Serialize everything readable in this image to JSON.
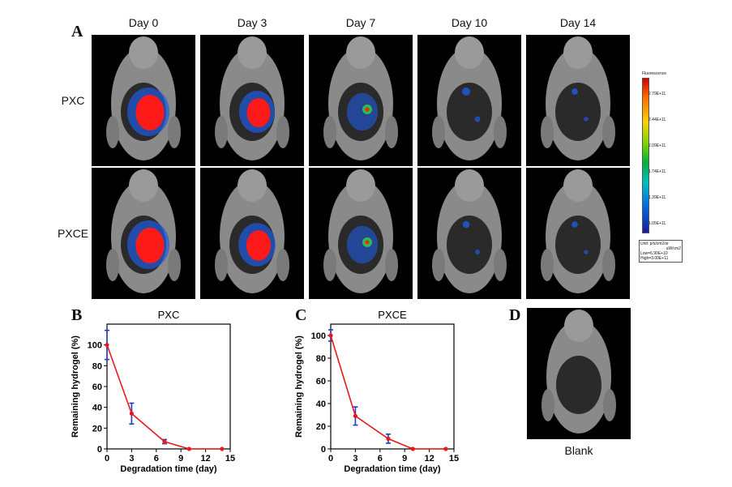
{
  "panel_a": {
    "letter": "A",
    "days": [
      "Day 0",
      "Day 3",
      "Day 7",
      "Day 10",
      "Day 14"
    ],
    "rows": [
      "PXC",
      "PXCE"
    ],
    "intensity": [
      [
        1.0,
        0.75,
        0.45,
        0.25,
        0.12
      ],
      [
        1.0,
        0.8,
        0.45,
        0.15,
        0.1
      ]
    ]
  },
  "colorbar": {
    "title": "Fluorescence",
    "ticks": [
      "2.79E+11",
      "2.44E+11",
      "2.09E+11",
      "1.74E+11",
      "1.39E+11",
      "1.05E+11"
    ],
    "unit_line1": "Unit: p/s/cm2/sr",
    "unit_line2": "uW/cm2",
    "low": "Low=6.90E+10",
    "high": "High=3.00E+11"
  },
  "panel_b": {
    "letter": "B"
  },
  "panel_c": {
    "letter": "C"
  },
  "panel_d": {
    "letter": "D",
    "caption": "Blank"
  },
  "chart_data": [
    {
      "type": "line",
      "title": "PXC",
      "xlabel": "Degradation time (day)",
      "ylabel": "Remaining hydrogel (%)",
      "x": [
        0,
        3,
        7,
        10,
        14
      ],
      "y": [
        100,
        34,
        7,
        0,
        0
      ],
      "yerr": [
        14,
        10,
        2,
        0,
        0
      ],
      "xlim": [
        0,
        15
      ],
      "ylim": [
        0,
        120
      ],
      "xticks": [
        0,
        3,
        6,
        9,
        12,
        15
      ],
      "yticks": [
        0,
        20,
        40,
        60,
        80,
        100
      ],
      "line_color": "#e8191e",
      "errorbar_color": "#1f3fbf"
    },
    {
      "type": "line",
      "title": "PXCE",
      "xlabel": "Degradation time (day)",
      "ylabel": "Remaining hydrogel (%)",
      "x": [
        0,
        3,
        7,
        10,
        14
      ],
      "y": [
        100,
        29,
        9,
        0,
        0
      ],
      "yerr": [
        5,
        8,
        4,
        0,
        0
      ],
      "xlim": [
        0,
        15
      ],
      "ylim": [
        0,
        110
      ],
      "xticks": [
        0,
        3,
        6,
        9,
        12,
        15
      ],
      "yticks": [
        0,
        20,
        40,
        60,
        80,
        100
      ],
      "line_color": "#e8191e",
      "errorbar_color": "#1f3fbf"
    }
  ]
}
